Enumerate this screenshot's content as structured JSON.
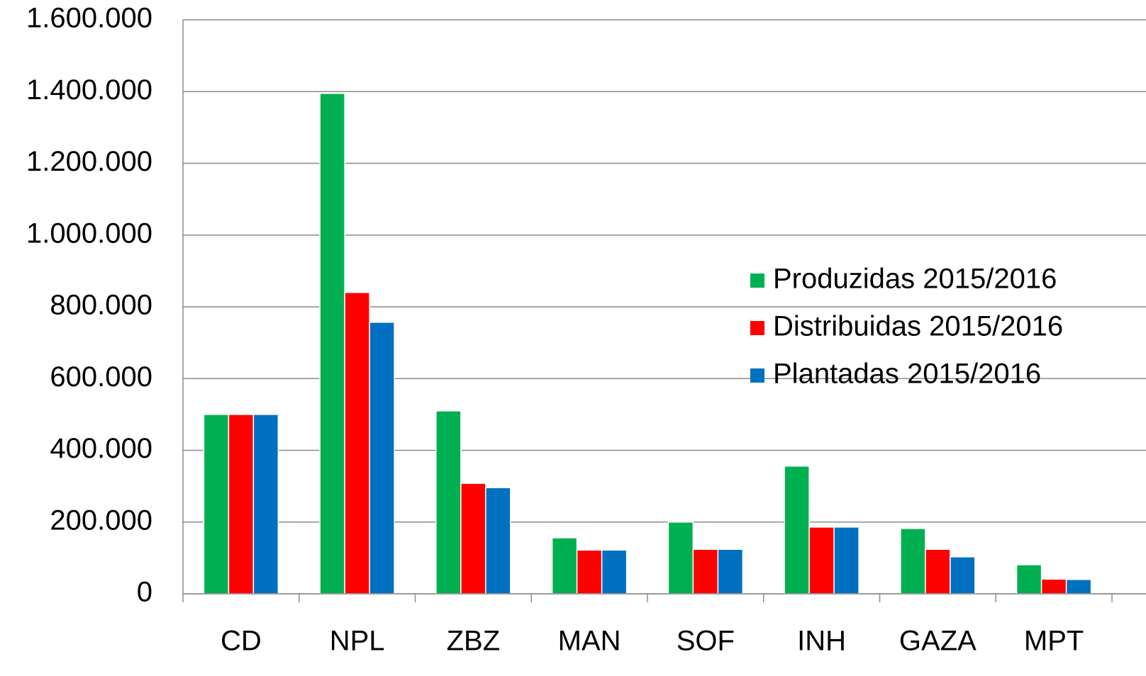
{
  "chart_data": {
    "type": "bar",
    "categories": [
      "CD",
      "NPL",
      "ZBZ",
      "MAN",
      "SOF",
      "INH",
      "GAZA",
      "MPT"
    ],
    "series": [
      {
        "name": "Produzidas 2015/2016",
        "color": "#00b050",
        "values": [
          500000,
          1395000,
          510000,
          156000,
          200000,
          356000,
          182000,
          81000
        ]
      },
      {
        "name": "Distribuidas 2015/2016",
        "color": "#ff0000",
        "values": [
          500000,
          840000,
          308000,
          122000,
          124000,
          186000,
          124000,
          41000
        ]
      },
      {
        "name": "Plantadas 2015/2016",
        "color": "#0070c0",
        "values": [
          500000,
          757000,
          296000,
          122000,
          124000,
          186000,
          103000,
          40000
        ]
      }
    ],
    "ylim": [
      0,
      1600000
    ],
    "yticks": [
      0,
      {
        "value": 200000,
        "label": "200.000"
      },
      {
        "value": 400000,
        "label": "400.000"
      },
      {
        "value": 600000,
        "label": "600.000"
      },
      {
        "value": 800000,
        "label": "800.000"
      },
      {
        "value": 1000000,
        "label": "1.000.000"
      },
      {
        "value": 1200000,
        "label": "1.200.000"
      },
      {
        "value": 1400000,
        "label": "1.400.000"
      },
      {
        "value": 1600000,
        "label": "1.600.000"
      }
    ],
    "grid": true,
    "legend": "right"
  }
}
